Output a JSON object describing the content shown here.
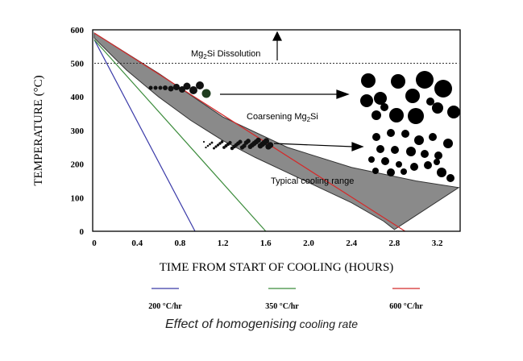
{
  "chart_data": {
    "type": "line",
    "title": "Effect of homogenising cooling rate",
    "xlabel": "TIME FROM START OF COOLING (HOURS)",
    "ylabel": "TEMPERATURE (°C)",
    "xlim": [
      0,
      3.4
    ],
    "ylim": [
      0,
      600
    ],
    "xticks": [
      "0",
      "0.4",
      "0.8",
      "1.2",
      "1.6",
      "2.0",
      "2.4",
      "2.8",
      "3.2"
    ],
    "yticks": [
      "0",
      "100",
      "200",
      "300",
      "400",
      "500",
      "600"
    ],
    "series": [
      {
        "name": "200 °C/hr",
        "color": "#3a3aa8",
        "x": [
          0,
          0.94
        ],
        "y": [
          570,
          0
        ]
      },
      {
        "name": "350 °C/hr",
        "color": "#3c8c3c",
        "x": [
          0,
          1.6
        ],
        "y": [
          570,
          0
        ]
      },
      {
        "name": "600 °C/hr",
        "color": "#d42a2a",
        "x": [
          0,
          2.9
        ],
        "y": [
          590,
          0
        ]
      }
    ],
    "typical_range": {
      "label": "Typical cooling range",
      "upper": {
        "x": [
          0,
          0.6,
          1.2,
          1.8,
          2.4,
          3.0,
          3.4
        ],
        "y": [
          590,
          470,
          340,
          250,
          190,
          150,
          130
        ]
      },
      "lower": {
        "x": [
          0,
          0.3,
          0.6,
          0.9,
          1.2,
          1.5,
          1.8,
          2.1,
          2.4,
          2.7,
          2.8,
          3.4
        ],
        "y": [
          575,
          480,
          400,
          330,
          270,
          220,
          175,
          130,
          85,
          30,
          5,
          130
        ]
      }
    },
    "reference_line": {
      "label": "Mg2Si Dissolution",
      "y": 500
    },
    "annotations": {
      "dissolution": "Mg",
      "dissolution_sub": "2",
      "dissolution_rest": "Si Dissolution",
      "coarsening": "Coarsening Mg",
      "coarsening_sub": "2",
      "coarsening_rest": "Si",
      "typical_range": "Typical cooling range"
    }
  },
  "caption": {
    "main": "Effect of homogenising",
    "small": " cooling rate"
  }
}
